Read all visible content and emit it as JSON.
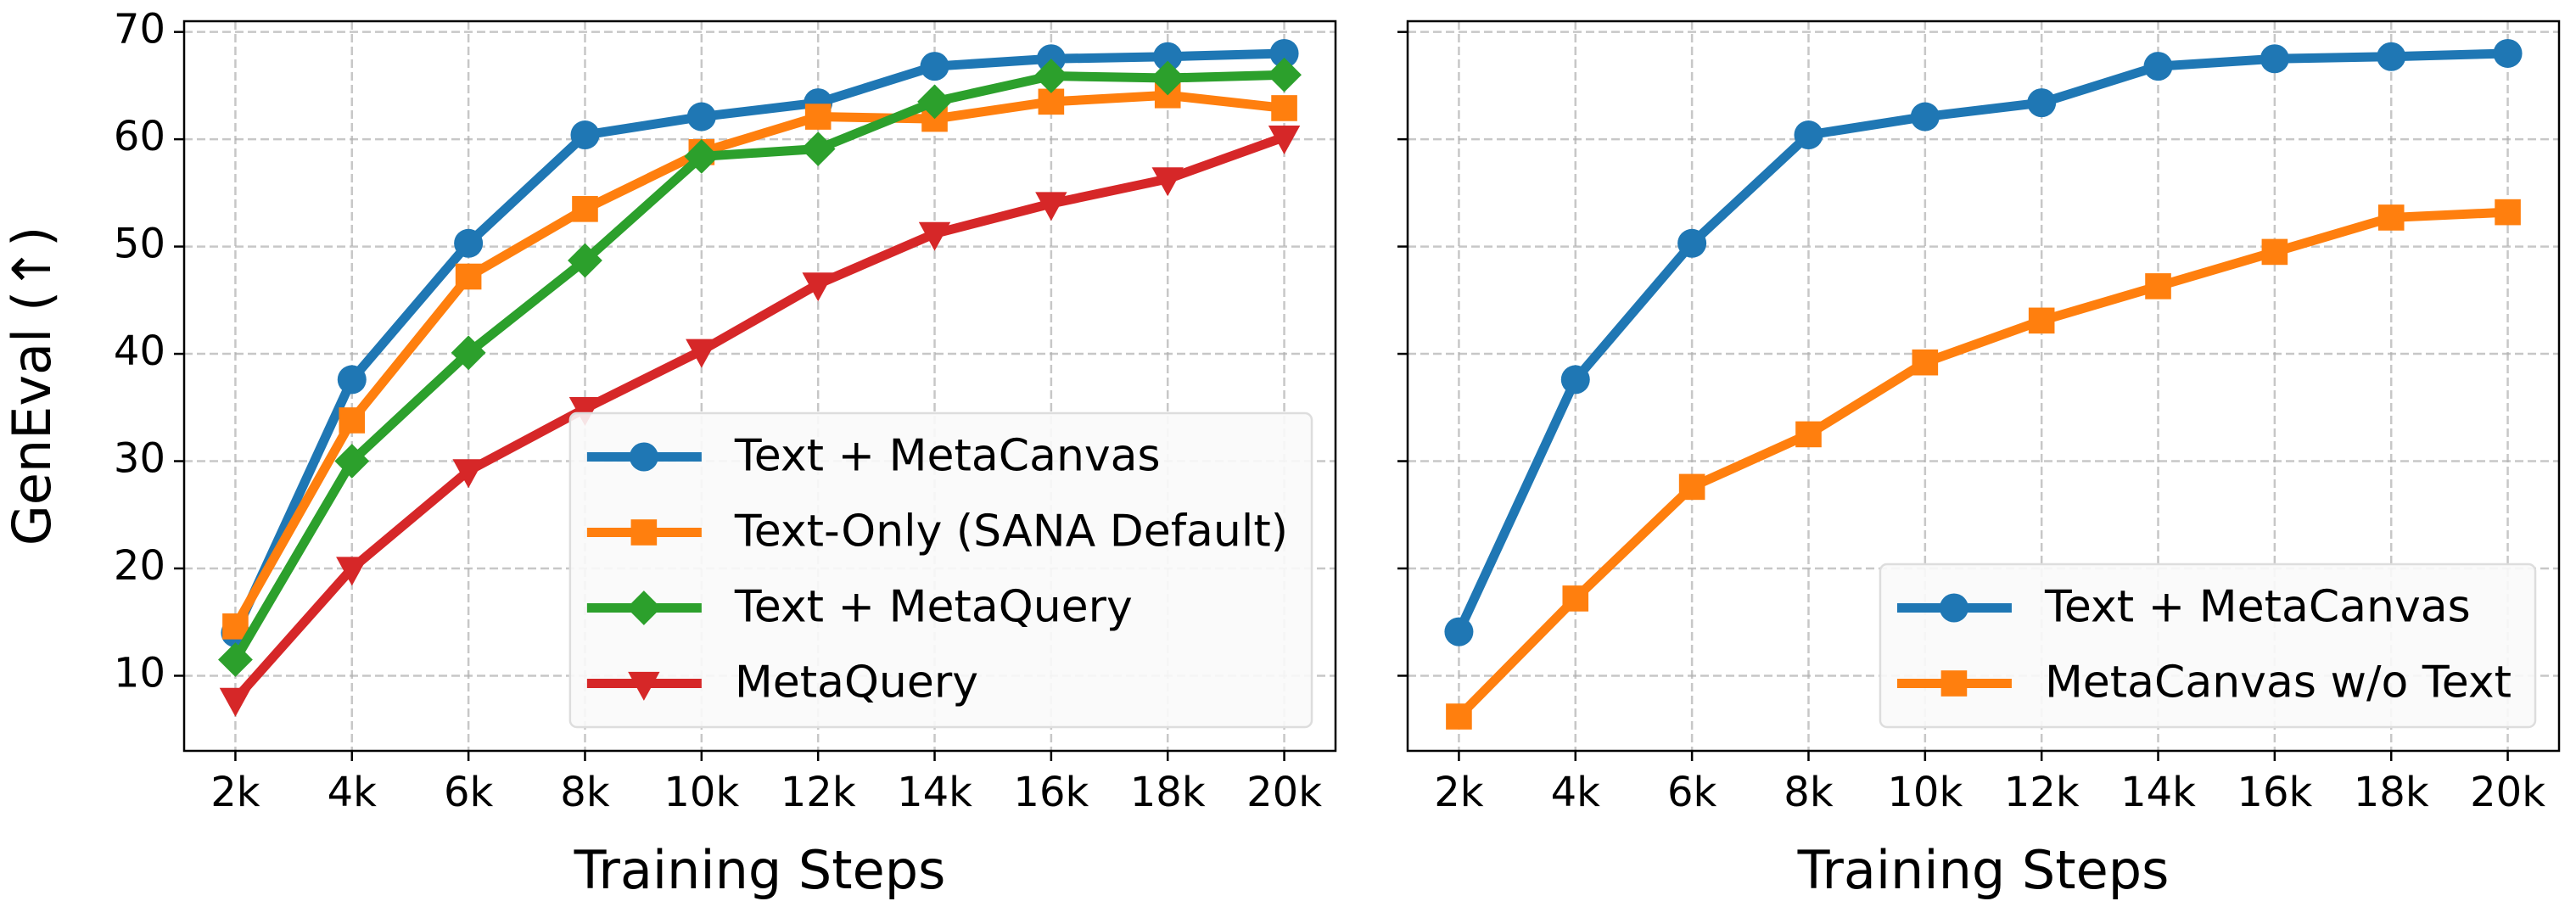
{
  "chart_data": [
    {
      "type": "line",
      "xlabel": "Training Steps",
      "ylabel": "GenEval (↑)",
      "categories": [
        "2k",
        "4k",
        "6k",
        "8k",
        "10k",
        "12k",
        "14k",
        "16k",
        "18k",
        "20k"
      ],
      "ylim": [
        3,
        71
      ],
      "yticks": [
        10,
        20,
        30,
        40,
        50,
        60,
        70
      ],
      "ytick_labels": true,
      "grid": true,
      "legend": "lower right",
      "series": [
        {
          "name": "Text + MetaCanvas",
          "color": "#1f77b4",
          "marker": "circle",
          "values": [
            14.0,
            37.6,
            50.3,
            60.4,
            62.1,
            63.4,
            66.8,
            67.5,
            67.7,
            68.0
          ]
        },
        {
          "name": "Text-Only (SANA Default)",
          "color": "#ff7f0e",
          "marker": "square",
          "values": [
            14.6,
            33.8,
            47.2,
            53.5,
            58.8,
            62.1,
            61.9,
            63.5,
            64.1,
            62.9
          ]
        },
        {
          "name": "Text + MetaQuery",
          "color": "#2ca02c",
          "marker": "diamond",
          "values": [
            11.5,
            30.0,
            40.1,
            48.7,
            58.4,
            59.1,
            63.5,
            65.9,
            65.7,
            66.0
          ]
        },
        {
          "name": "MetaQuery",
          "color": "#d62728",
          "marker": "triangle-down",
          "values": [
            7.8,
            20.0,
            29.1,
            34.9,
            40.3,
            46.5,
            51.2,
            54.0,
            56.3,
            60.2
          ]
        }
      ]
    },
    {
      "type": "line",
      "xlabel": "Training Steps",
      "categories": [
        "2k",
        "4k",
        "6k",
        "8k",
        "10k",
        "12k",
        "14k",
        "16k",
        "18k",
        "20k"
      ],
      "ylim": [
        3,
        71
      ],
      "yticks": [
        10,
        20,
        30,
        40,
        50,
        60,
        70
      ],
      "ytick_labels": false,
      "grid": true,
      "legend": "lower right",
      "series": [
        {
          "name": "Text + MetaCanvas",
          "color": "#1f77b4",
          "marker": "circle",
          "values": [
            14.1,
            37.6,
            50.3,
            60.4,
            62.1,
            63.4,
            66.8,
            67.5,
            67.7,
            68.0
          ]
        },
        {
          "name": "MetaCanvas w/o Text",
          "color": "#ff7f0e",
          "marker": "square",
          "values": [
            6.2,
            17.2,
            27.6,
            32.5,
            39.2,
            43.1,
            46.3,
            49.5,
            52.7,
            53.2
          ]
        }
      ]
    }
  ]
}
